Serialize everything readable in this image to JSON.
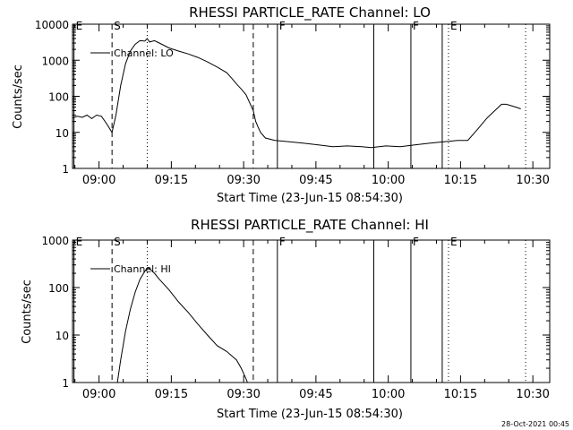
{
  "footer": {
    "timestamp": "28-Oct-2021 00:45"
  },
  "chart_data": [
    {
      "type": "line",
      "title": "RHESSI PARTICLE_RATE Channel: LO",
      "xlabel": "Start Time (23-Jun-15 08:54:30)",
      "ylabel": "Counts/sec",
      "yscale": "log",
      "ylim": [
        1,
        10000
      ],
      "xlim_minutes_after_start": [
        0,
        99
      ],
      "x_ticks": [
        {
          "label": "09:00",
          "t": 5.5
        },
        {
          "label": "09:15",
          "t": 20.5
        },
        {
          "label": "09:30",
          "t": 35.5
        },
        {
          "label": "09:45",
          "t": 50.5
        },
        {
          "label": "10:00",
          "t": 65.5
        },
        {
          "label": "10:15",
          "t": 80.5
        },
        {
          "label": "10:30",
          "t": 95.5
        }
      ],
      "y_ticks": [
        "1",
        "10",
        "100",
        "1000",
        "10000"
      ],
      "legend": {
        "label": "Channel: LO",
        "position": "top-left"
      },
      "markers": [
        {
          "label": "E",
          "t": 0.3,
          "style": "solid"
        },
        {
          "label": "S",
          "t": 8.2,
          "style": "dashed"
        },
        {
          "label": "",
          "t": 15.5,
          "style": "dotted"
        },
        {
          "label": "",
          "t": 37.5,
          "style": "dashed"
        },
        {
          "label": "F",
          "t": 42.5,
          "style": "solid"
        },
        {
          "label": "",
          "t": 62.5,
          "style": "solid"
        },
        {
          "label": "F",
          "t": 70.2,
          "style": "solid"
        },
        {
          "label": "",
          "t": 76.7,
          "style": "solid"
        },
        {
          "label": "E",
          "t": 78.0,
          "style": "dotted"
        },
        {
          "label": "",
          "t": 94.0,
          "style": "dotted"
        }
      ],
      "series": [
        {
          "name": "Channel: LO",
          "x": [
            0,
            1,
            2,
            3,
            4,
            5,
            6,
            7,
            8.2,
            9,
            10,
            11,
            12,
            13,
            14,
            15,
            15.5,
            16,
            17,
            18,
            20,
            22,
            24,
            26,
            28,
            30,
            32,
            33,
            34,
            35,
            36,
            37.5,
            38,
            38.5,
            39,
            40,
            42,
            45,
            48,
            51,
            54,
            57,
            60,
            62,
            65,
            68,
            71,
            74,
            77,
            80,
            82,
            84,
            86,
            88,
            89,
            90,
            91,
            92,
            93
          ],
          "y": [
            25,
            28,
            26,
            30,
            24,
            30,
            28,
            18,
            10,
            30,
            200,
            800,
            1800,
            2800,
            3500,
            3400,
            4000,
            3200,
            3500,
            3000,
            2200,
            1800,
            1500,
            1200,
            900,
            650,
            450,
            320,
            220,
            160,
            110,
            40,
            20,
            14,
            10,
            7,
            6,
            5.5,
            5,
            4.5,
            4,
            4.2,
            4,
            3.8,
            4.2,
            4,
            4.5,
            5,
            5.5,
            6,
            6,
            12,
            25,
            45,
            60,
            60,
            55,
            50,
            45
          ]
        }
      ]
    },
    {
      "type": "line",
      "title": "RHESSI PARTICLE_RATE Channel: HI",
      "xlabel": "Start Time (23-Jun-15 08:54:30)",
      "ylabel": "Counts/sec",
      "yscale": "log",
      "ylim": [
        1,
        1000
      ],
      "xlim_minutes_after_start": [
        0,
        99
      ],
      "x_ticks": [
        {
          "label": "09:00",
          "t": 5.5
        },
        {
          "label": "09:15",
          "t": 20.5
        },
        {
          "label": "09:30",
          "t": 35.5
        },
        {
          "label": "09:45",
          "t": 50.5
        },
        {
          "label": "10:00",
          "t": 65.5
        },
        {
          "label": "10:15",
          "t": 80.5
        },
        {
          "label": "10:30",
          "t": 95.5
        }
      ],
      "y_ticks": [
        "1",
        "10",
        "100",
        "1000"
      ],
      "legend": {
        "label": "Channel: HI",
        "position": "top-left"
      },
      "markers": [
        {
          "label": "E",
          "t": 0.3,
          "style": "solid"
        },
        {
          "label": "S",
          "t": 8.2,
          "style": "dashed"
        },
        {
          "label": "",
          "t": 15.5,
          "style": "dotted"
        },
        {
          "label": "",
          "t": 37.5,
          "style": "dashed"
        },
        {
          "label": "F",
          "t": 42.5,
          "style": "solid"
        },
        {
          "label": "",
          "t": 62.5,
          "style": "solid"
        },
        {
          "label": "F",
          "t": 70.2,
          "style": "solid"
        },
        {
          "label": "",
          "t": 76.7,
          "style": "solid"
        },
        {
          "label": "E",
          "t": 78.0,
          "style": "dotted"
        },
        {
          "label": "",
          "t": 94.0,
          "style": "dotted"
        }
      ],
      "series": [
        {
          "name": "Channel: HI",
          "x": [
            9.3,
            10,
            11,
            12,
            13,
            14,
            15,
            15.5,
            16,
            17,
            18,
            20,
            22,
            24,
            26,
            28,
            30,
            32,
            34,
            35,
            36,
            36.3
          ],
          "y": [
            1,
            3,
            12,
            35,
            80,
            150,
            220,
            260,
            250,
            200,
            150,
            90,
            50,
            30,
            17,
            10,
            6,
            4.5,
            3,
            2,
            1.2,
            1
          ]
        }
      ]
    }
  ]
}
